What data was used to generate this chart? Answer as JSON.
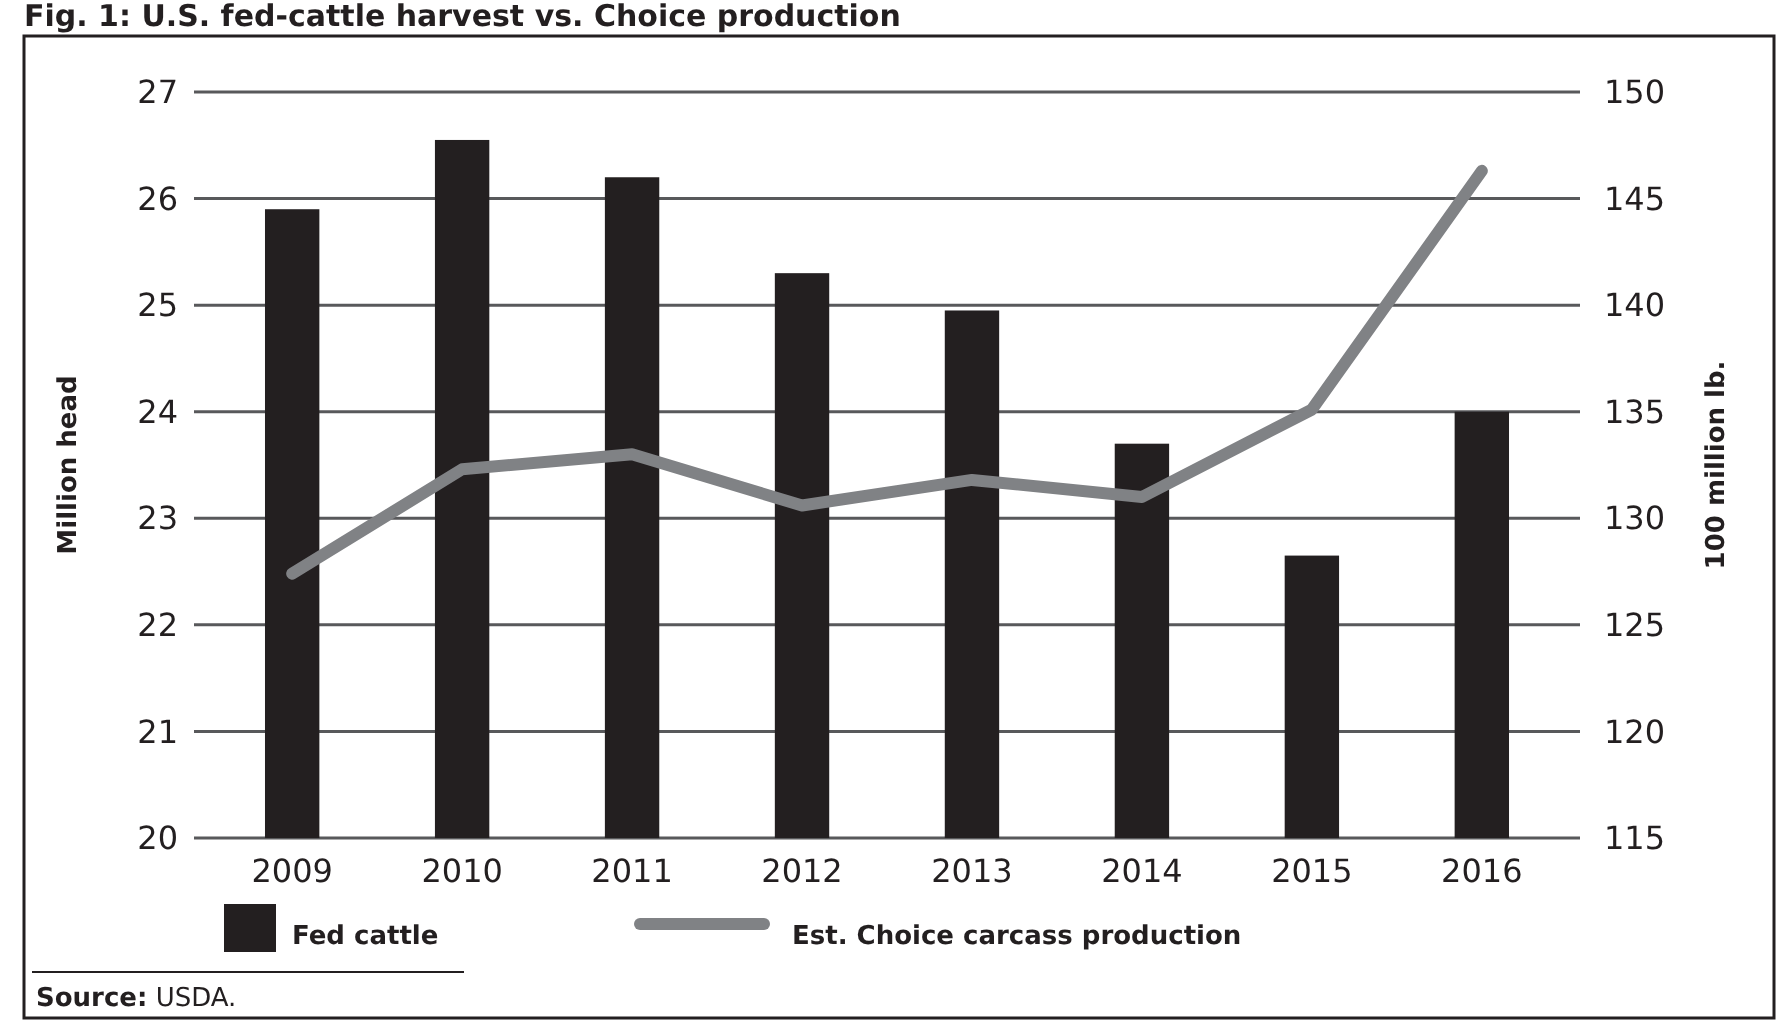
{
  "chart_data": {
    "type": "bar",
    "title": "Fig. 1: U.S. fed-cattle harvest vs. Choice production",
    "ylabel": "Million head",
    "y2label": "100 million lb.",
    "categories": [
      "2009",
      "2010",
      "2011",
      "2012",
      "2013",
      "2014",
      "2015",
      "2016"
    ],
    "series": [
      {
        "name": "Fed cattle",
        "color": "#231f20",
        "values": [
          25.9,
          26.55,
          26.2,
          25.3,
          24.95,
          23.7,
          22.65,
          24.0
        ]
      },
      {
        "name": "Est. Choice carcass production",
        "type": "line",
        "axis": "y2",
        "color": "#808285",
        "values": [
          127.4,
          132.3,
          133.0,
          130.6,
          131.8,
          131.0,
          135.1,
          146.3
        ]
      }
    ],
    "ylim": [
      20,
      27
    ],
    "yticks": [
      20,
      21,
      22,
      23,
      24,
      25,
      26,
      27
    ],
    "y2lim": [
      115,
      150
    ],
    "y2ticks": [
      115,
      120,
      125,
      130,
      135,
      140,
      145,
      150
    ],
    "grid": "y",
    "legend": "bottom",
    "marker": "none",
    "line_style": "solid",
    "annotations": [
      "Source: USDA."
    ]
  }
}
